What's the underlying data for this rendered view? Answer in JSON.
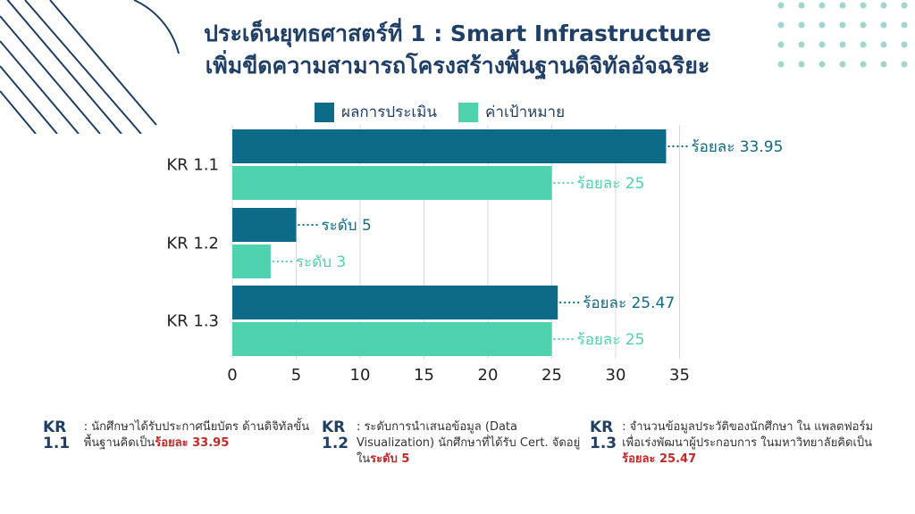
{
  "title_line1": "ประเด็นยุทธศาสตร์ที่ 1 : Smart Infrastructure",
  "title_line2": "เพิ่มขีดความสามารถโครงสร้างพื้นฐานดิจิทัลอัจฉริยะ",
  "colors": {
    "result": "#0e6b87",
    "target": "#4ed3ae",
    "title": "#1f3f66",
    "highlight": "#c62828"
  },
  "chart_data": {
    "type": "bar",
    "orientation": "horizontal",
    "categories": [
      "KR 1.1",
      "KR 1.2",
      "KR 1.3"
    ],
    "series": [
      {
        "name": "ผลการประเมิน",
        "values": [
          33.95,
          5,
          25.47
        ],
        "labels": [
          "ร้อยละ 33.95",
          "ระดับ 5",
          "ร้อยละ 25.47"
        ]
      },
      {
        "name": "ค่าเป้าหมาย",
        "values": [
          25,
          3,
          25
        ],
        "labels": [
          "ร้อยละ 25",
          "ระดับ 3",
          "ร้อยละ 25"
        ]
      }
    ],
    "xlim": [
      0,
      35
    ],
    "xticks": [
      "0",
      "5",
      "10",
      "15",
      "20",
      "25",
      "30",
      "35"
    ],
    "grid": true,
    "legend": "top"
  },
  "footer": [
    {
      "kr": "KR 1.1",
      "text": ": นักศึกษาได้รับประกาศนียบัตร ด้านดิจิทัลขั้นพื้นฐานคิดเป็น",
      "highlight": "ร้อยละ 33.95"
    },
    {
      "kr": "KR 1.2",
      "text": ": ระดับการนำเสนอข้อมูล (Data Visualization) นักศึกษาที่ได้รับ Cert. จัดอยู่ใน",
      "highlight": "ระดับ 5"
    },
    {
      "kr": "KR 1.3",
      "text": ": จำนวนข้อมูลประวัติของนักศึกษา ใน แพลตฟอร์มเพื่อเร่งพัฒนาผู้ประกอบการ ในมหาวิทยาลัยคิดเป็น",
      "highlight": "ร้อยละ 25.47"
    }
  ]
}
